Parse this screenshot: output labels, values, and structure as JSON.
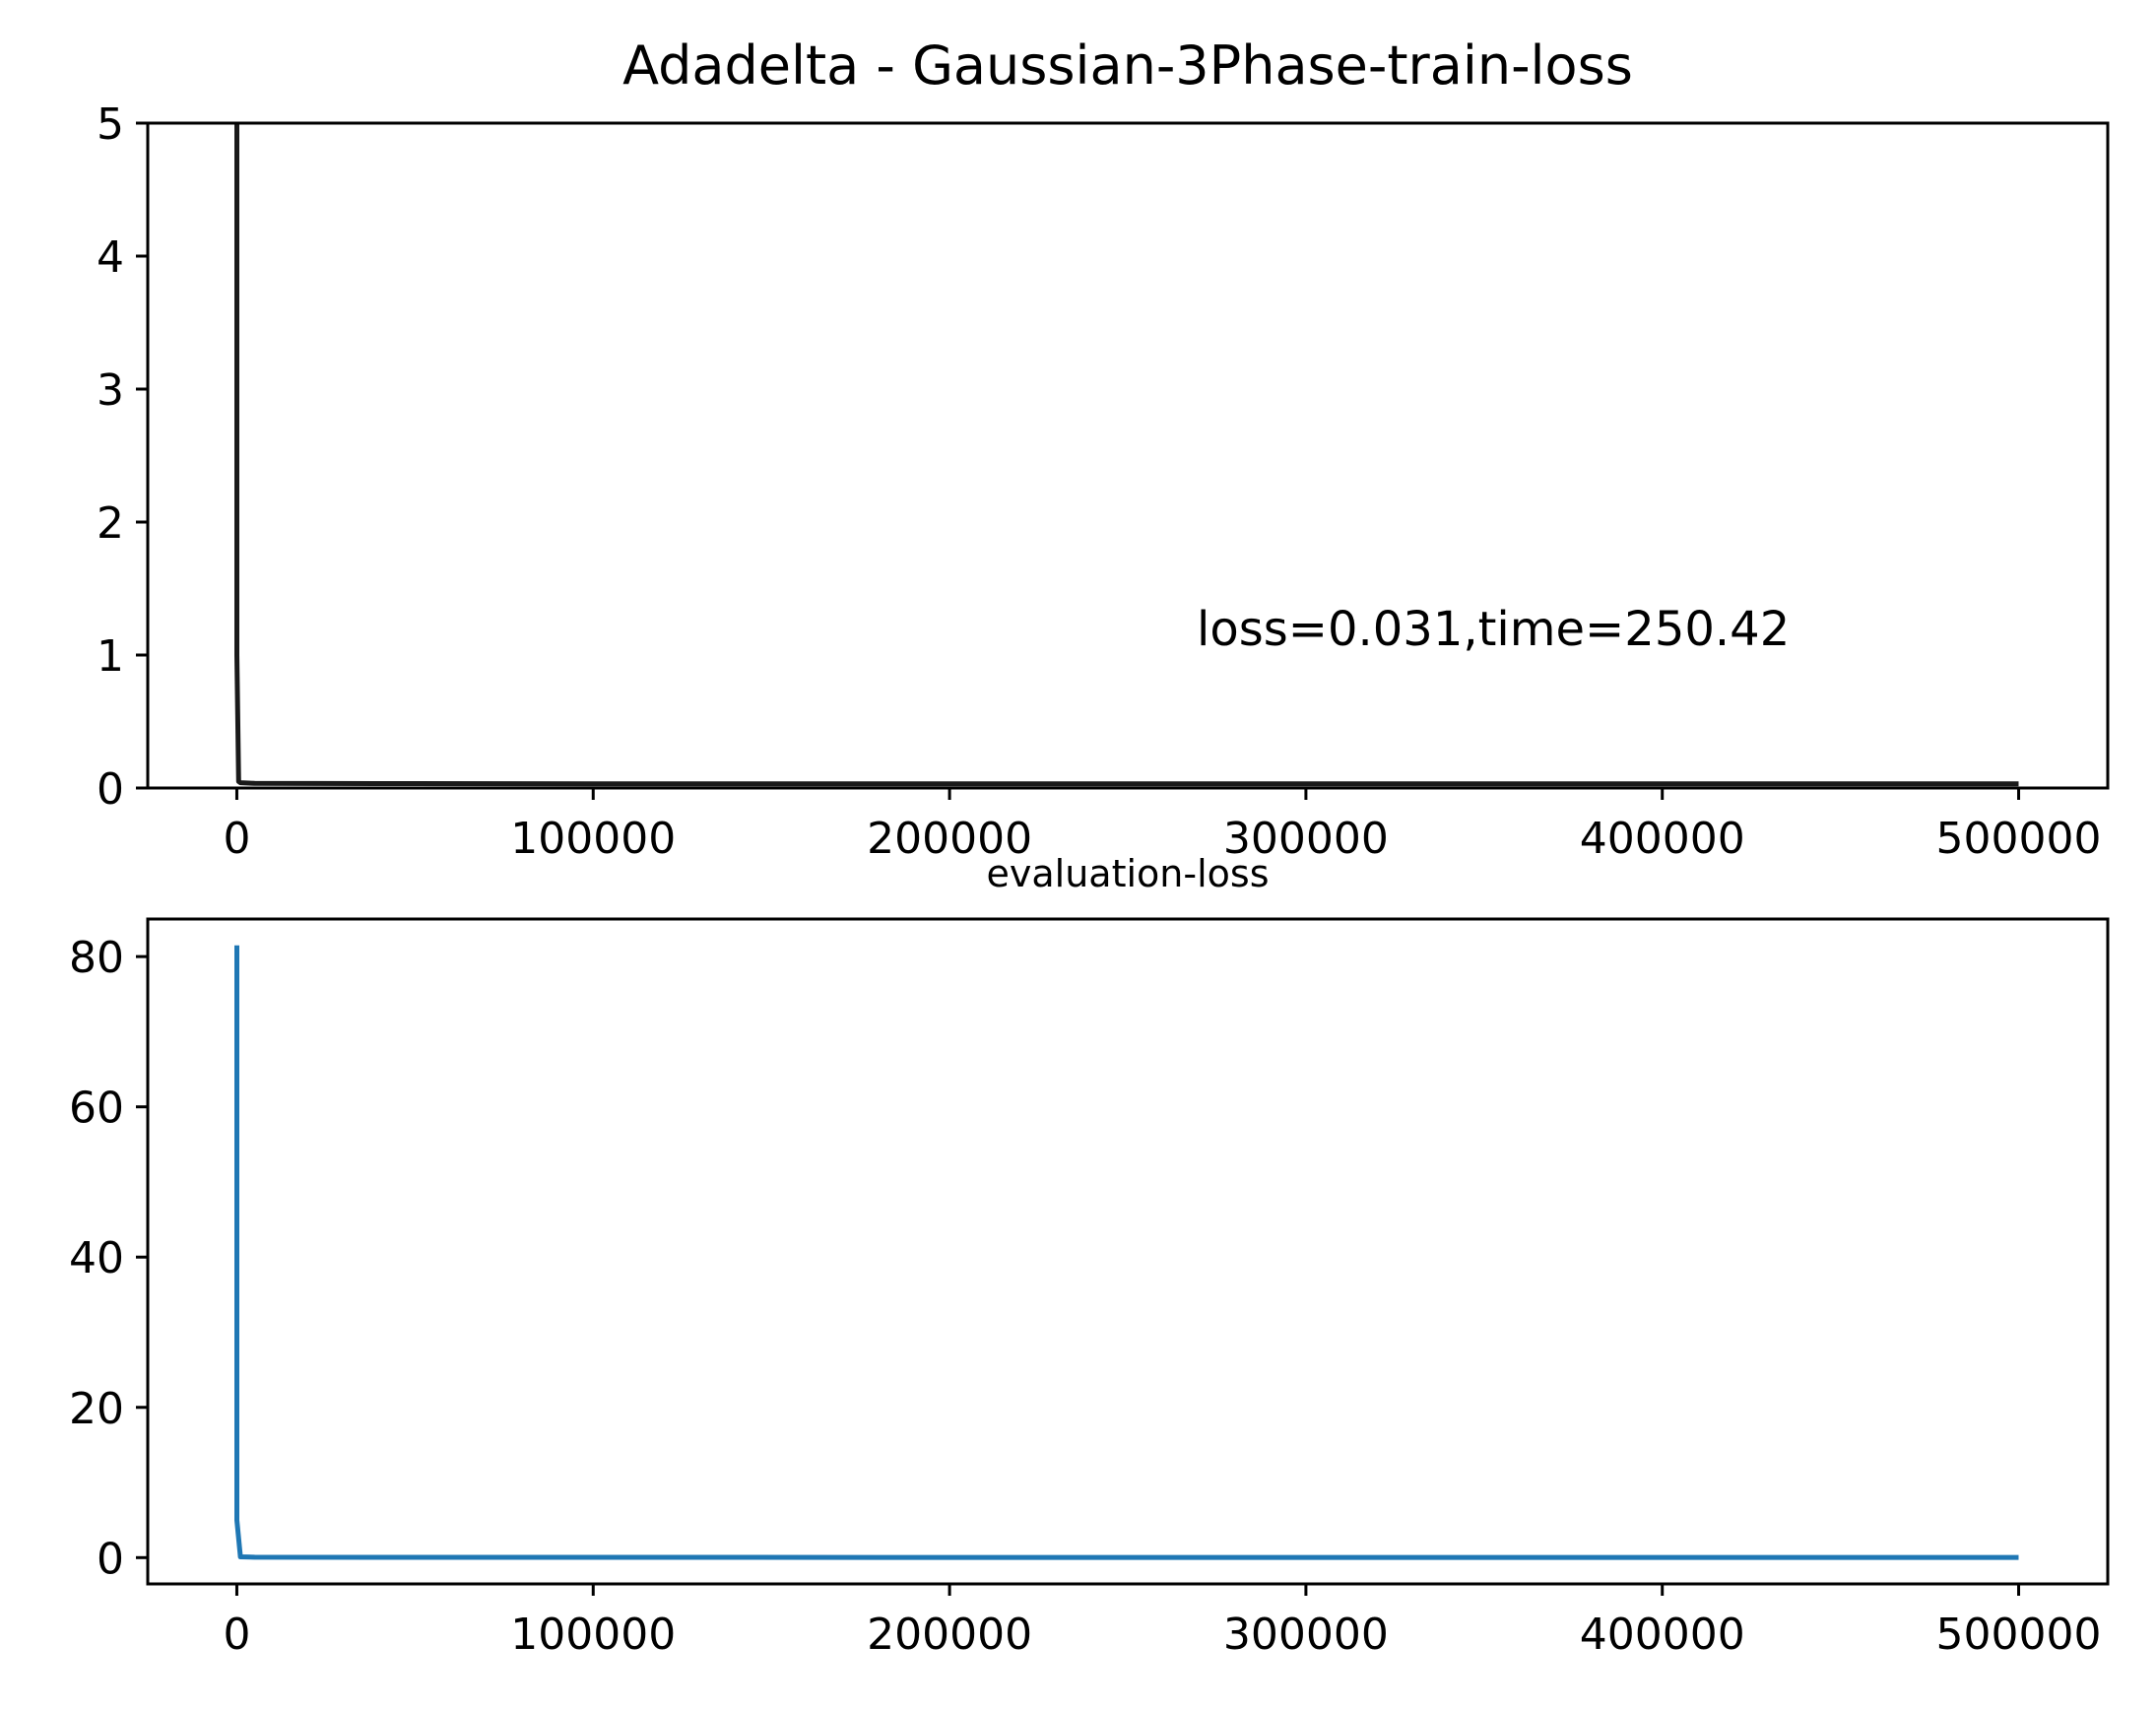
{
  "chart_data": [
    {
      "type": "line",
      "title": "Adadelta - Gaussian-3Phase-train-loss",
      "annotation": "loss=0.031,time=250.42",
      "xlim": [
        -25000,
        525000
      ],
      "ylim": [
        0,
        5
      ],
      "x_ticks": [
        0,
        100000,
        200000,
        300000,
        400000,
        500000
      ],
      "x_tick_labels": [
        "0",
        "100000",
        "200000",
        "300000",
        "400000",
        "500000"
      ],
      "y_ticks": [
        0,
        1,
        2,
        3,
        4,
        5
      ],
      "y_tick_labels": [
        "0",
        "1",
        "2",
        "3",
        "4",
        "5"
      ],
      "grid": false,
      "series": [
        {
          "color": "#1a1a1a",
          "x": [
            0,
            0,
            500,
            1000,
            5000,
            50000,
            100000,
            200000,
            300000,
            400000,
            500000
          ],
          "y": [
            5.0,
            1.0,
            0.05,
            0.04,
            0.035,
            0.033,
            0.032,
            0.032,
            0.031,
            0.031,
            0.031
          ]
        }
      ]
    },
    {
      "type": "line",
      "title": "evaluation-loss",
      "xlim": [
        -25000,
        525000
      ],
      "ylim": [
        -3.5,
        85
      ],
      "x_ticks": [
        0,
        100000,
        200000,
        300000,
        400000,
        500000
      ],
      "x_tick_labels": [
        "0",
        "100000",
        "200000",
        "300000",
        "400000",
        "500000"
      ],
      "y_ticks": [
        0,
        20,
        40,
        60,
        80
      ],
      "y_tick_labels": [
        "0",
        "20",
        "40",
        "60",
        "80"
      ],
      "grid": false,
      "series": [
        {
          "color": "#1f77b4",
          "x": [
            0,
            0,
            1000,
            5000,
            50000,
            100000,
            200000,
            300000,
            400000,
            500000
          ],
          "y": [
            81.5,
            5.0,
            0.1,
            0.05,
            0.04,
            0.035,
            0.033,
            0.032,
            0.031,
            0.031
          ]
        }
      ]
    }
  ]
}
